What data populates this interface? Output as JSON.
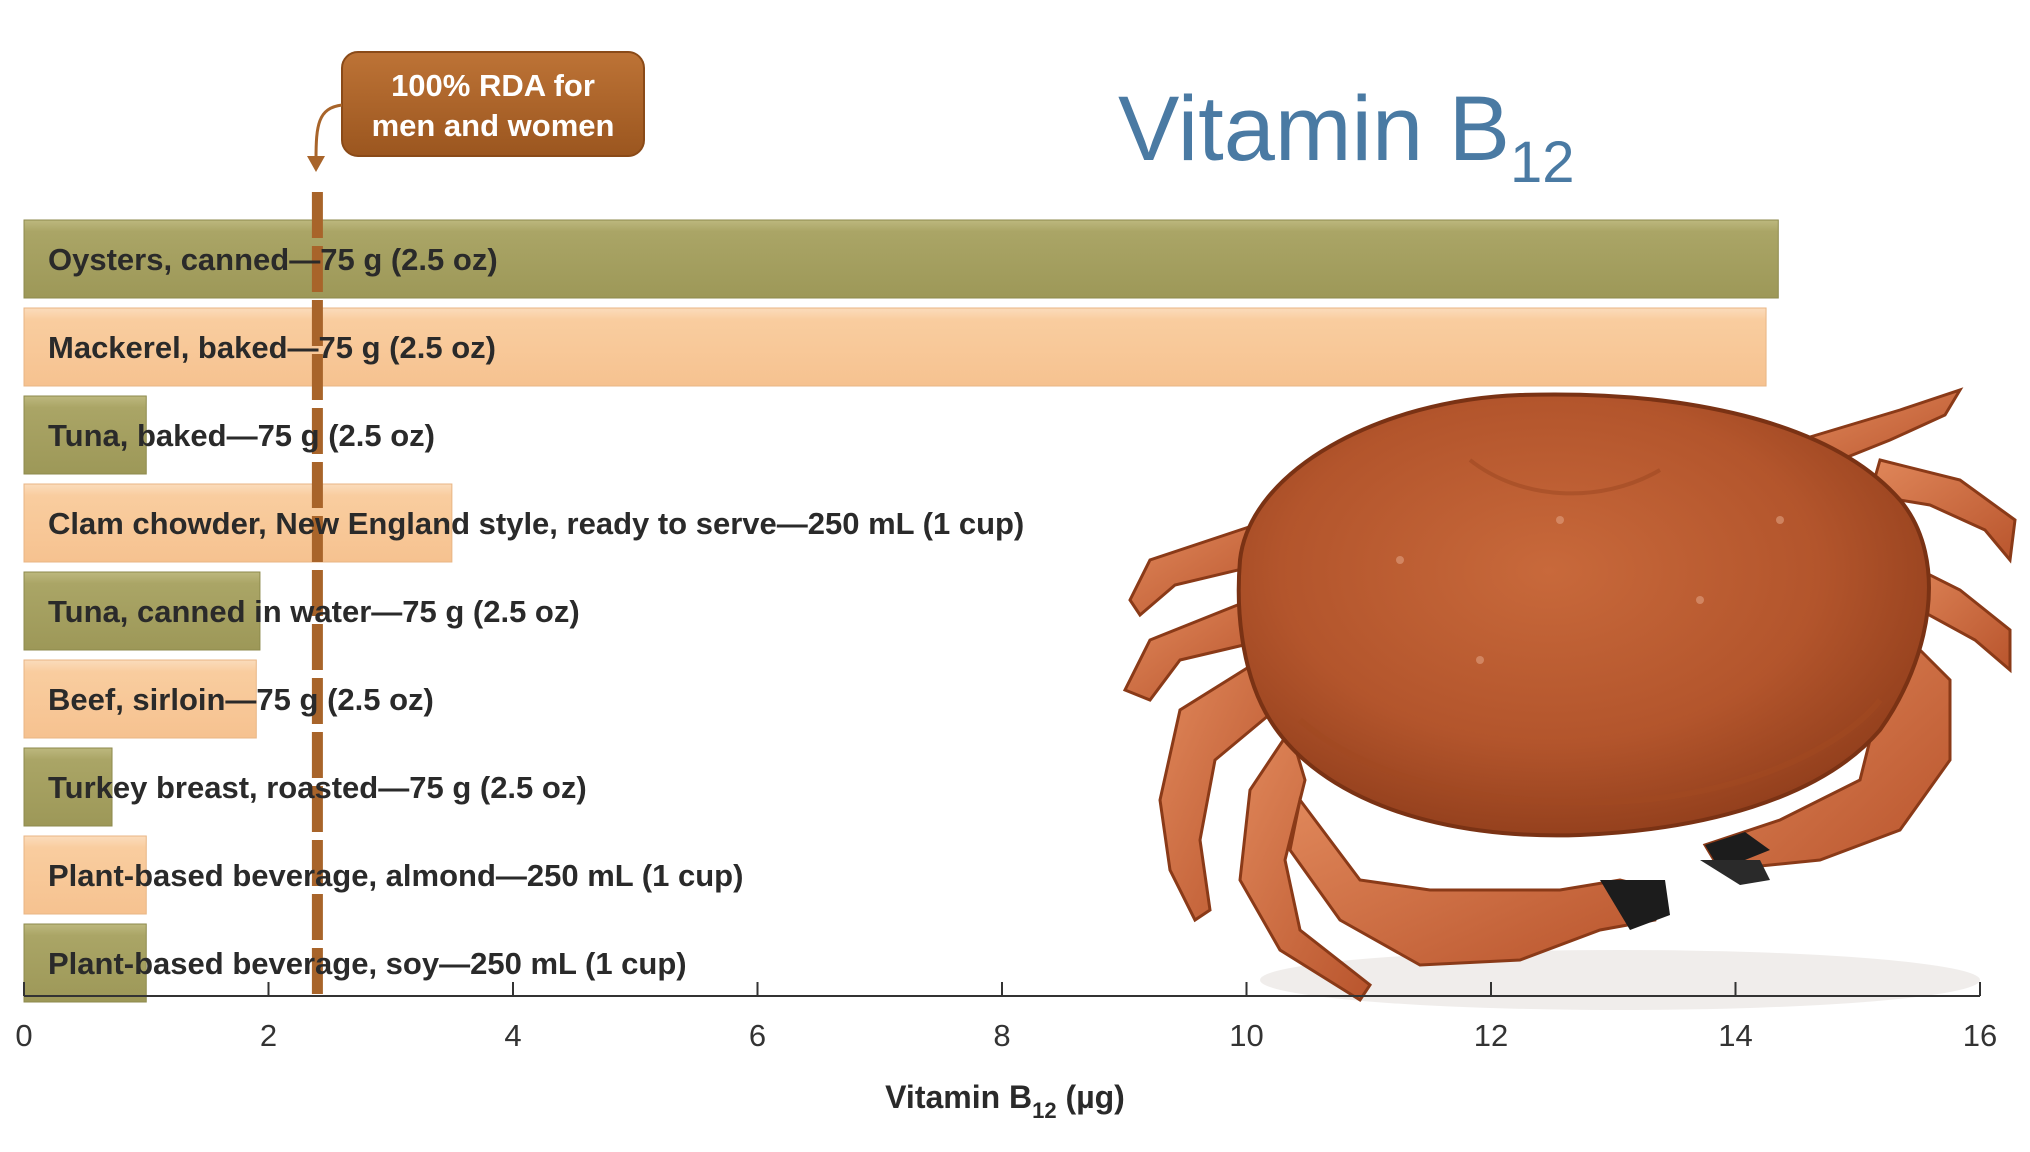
{
  "chart_data": {
    "type": "bar",
    "orientation": "horizontal",
    "title": "Vitamin B",
    "title_subscript": "12",
    "xlabel": "Vitamin B",
    "xlabel_subscript": "12",
    "xlabel_unit": " (µg)",
    "xlim": [
      0,
      16
    ],
    "xticks": [
      "0",
      "2",
      "4",
      "6",
      "8",
      "10",
      "12",
      "14",
      "16"
    ],
    "grid": false,
    "categories": [
      "Oysters, canned—75 g (2.5 oz)",
      "Mackerel, baked—75 g (2.5 oz)",
      "Tuna, baked—75 g (2.5 oz)",
      "Clam chowder, New England style, ready to serve—250 mL (1 cup)",
      "Tuna, canned in water—75 g (2.5 oz)",
      "Beef, sirloin—75 g (2.5 oz)",
      "Turkey breast, roasted—75 g (2.5 oz)",
      "Plant-based beverage, almond—250 mL (1 cup)",
      "Plant-based beverage, soy—250 mL (1 cup)"
    ],
    "values": [
      14.35,
      14.25,
      1.0,
      3.5,
      1.93,
      1.9,
      0.72,
      1.0,
      1.0
    ],
    "bar_colors": [
      "#a9a466",
      "#f8c99a"
    ],
    "reference_line": {
      "value": 2.4,
      "label_line1": "100% RDA for",
      "label_line2": "men and women",
      "color": "#a8642a"
    }
  },
  "colors": {
    "title": "#4a7aa3",
    "text": "#2a2a2a"
  },
  "image": {
    "description_icon": "crab-photo"
  }
}
